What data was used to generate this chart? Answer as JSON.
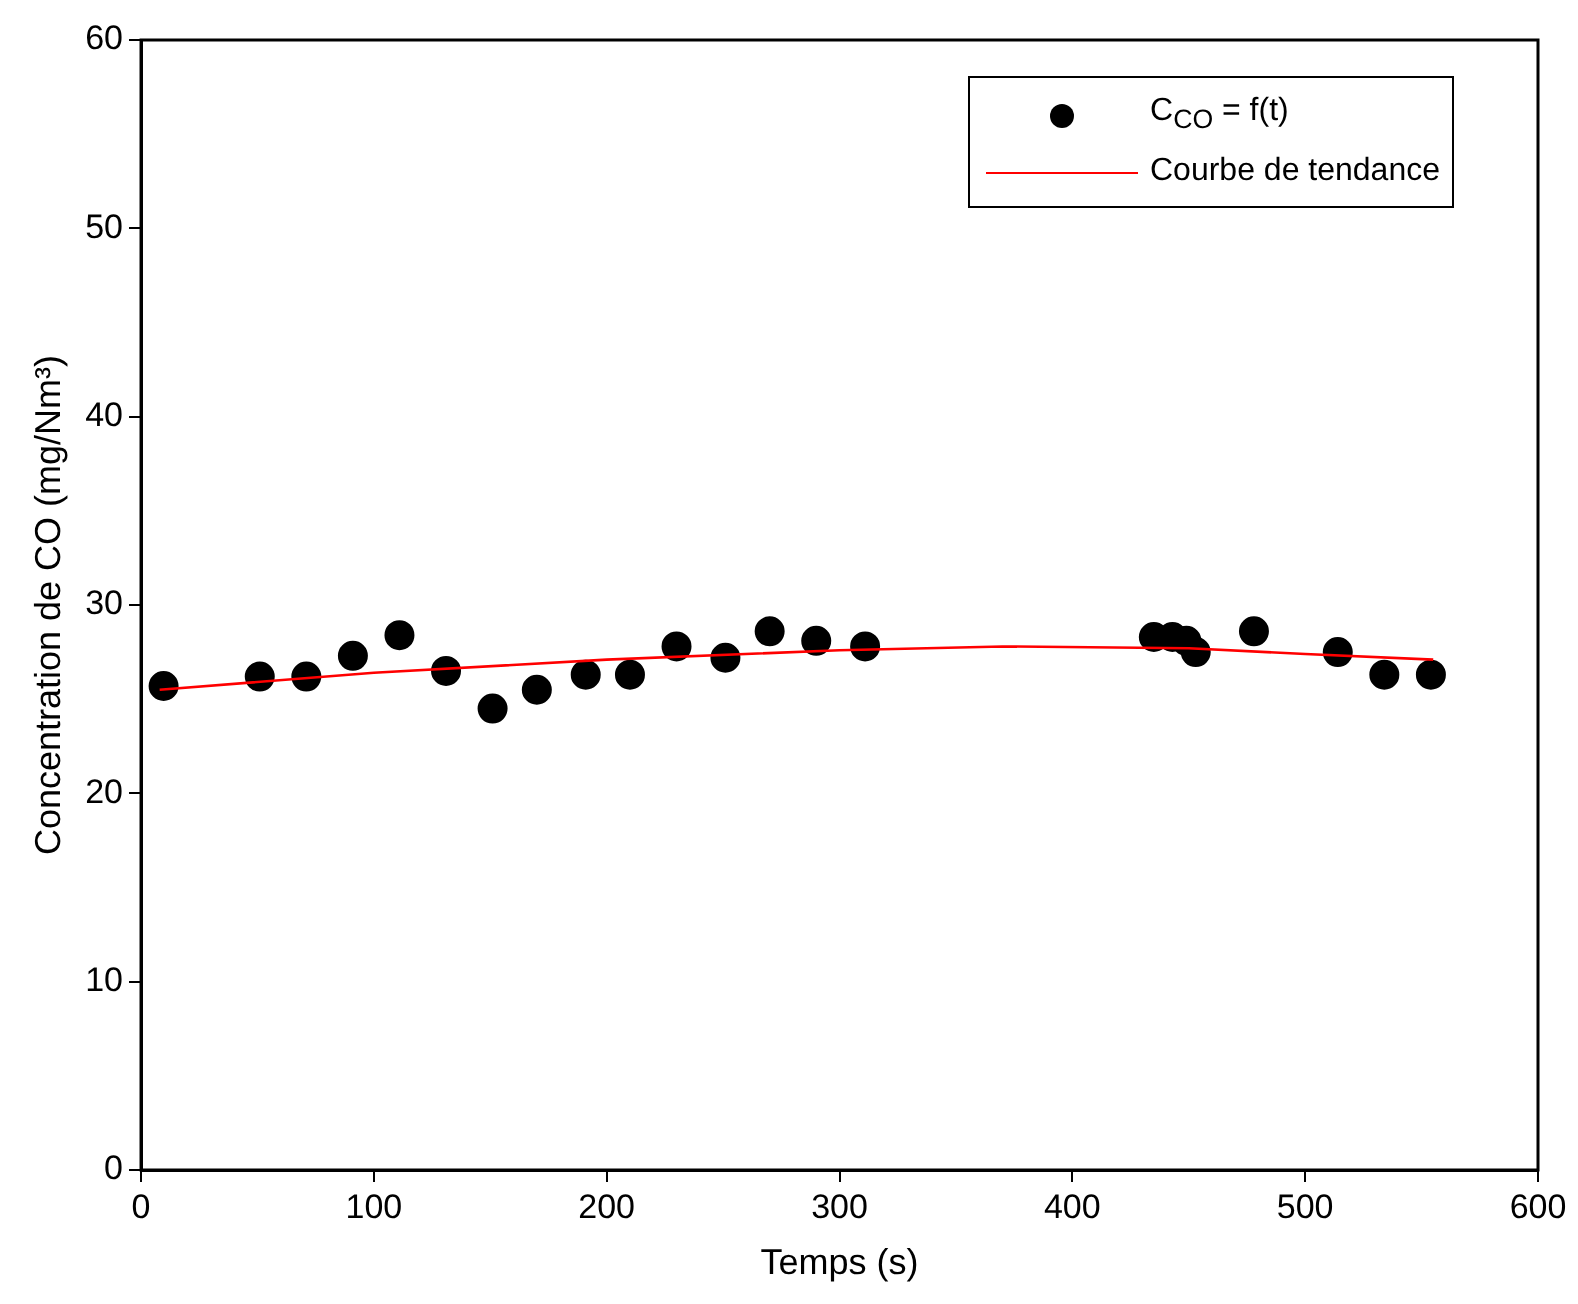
{
  "chart_data": {
    "type": "scatter",
    "xlabel": "Temps (s)",
    "ylabel": "Concentration de CO (mg/Nm³)",
    "xlim": [
      0,
      600
    ],
    "xticks": [
      0,
      100,
      200,
      300,
      400,
      500,
      600
    ],
    "ylim": [
      0,
      60
    ],
    "yticks": [
      0,
      10,
      20,
      30,
      40,
      50,
      60
    ],
    "grid": false,
    "legend": "top right",
    "series": [
      {
        "name": "C$_{CO}$ = f(t)",
        "marker": "circle",
        "color": "#000000",
        "x": [
          9.7,
          51,
          71,
          91,
          111,
          131,
          151,
          170,
          191,
          210,
          230,
          251,
          270,
          290,
          311,
          435,
          443,
          449,
          453,
          478,
          514,
          534,
          554
        ],
        "values": [
          25.7,
          26.2,
          26.2,
          27.3,
          28.4,
          26.5,
          24.5,
          25.5,
          26.3,
          26.3,
          27.8,
          27.2,
          28.6,
          28.1,
          27.8,
          28.3,
          28.3,
          28.1,
          27.5,
          28.6,
          27.5,
          26.3,
          26.3
        ]
      },
      {
        "name": "Courbe de tendance",
        "type": "line",
        "color": "#ff0000",
        "x": [
          8,
          100,
          200,
          300,
          370,
          450,
          500,
          555
        ],
        "values": [
          25.5,
          26.4,
          27.1,
          27.6,
          27.8,
          27.7,
          27.4,
          27.1
        ]
      }
    ]
  }
}
